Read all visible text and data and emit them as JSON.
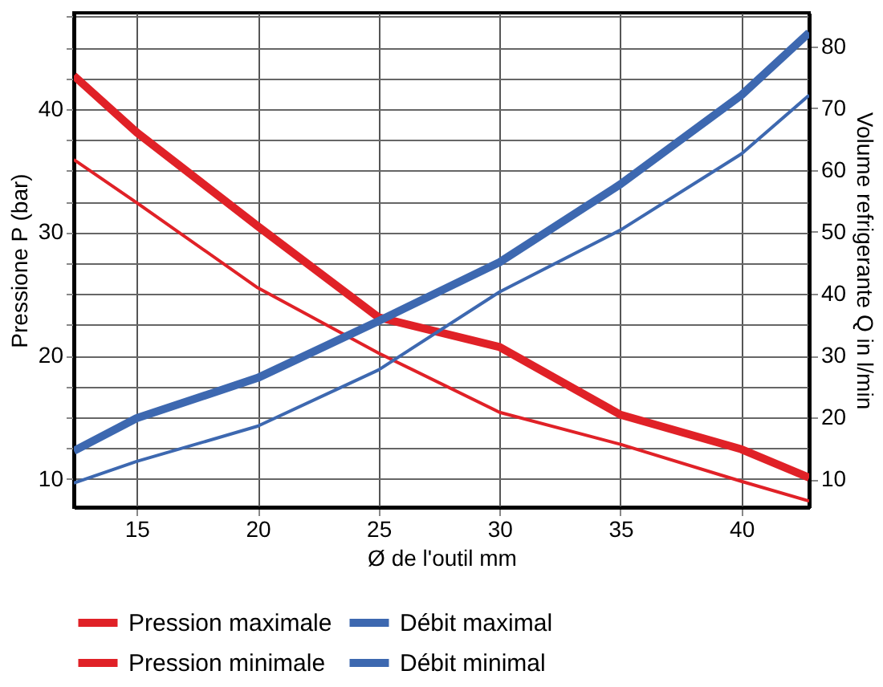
{
  "chart_data": {
    "type": "line",
    "xlabel": "Ø de l'outil mm",
    "ylabel": "Pressione P (bar)",
    "y2label": "Volume refrigerante Q in l/min",
    "xlim": [
      12.4,
      42.8
    ],
    "xticks": [
      15,
      20,
      25,
      30,
      35,
      40
    ],
    "ylim": [
      7.7,
      47.8
    ],
    "yticks": [
      10,
      {
        "value": 12.5,
        "label": null
      },
      {
        "value": 15,
        "label": null
      },
      {
        "value": 17.5,
        "label": null
      },
      20,
      {
        "value": 22.5,
        "label": null
      },
      {
        "value": 25,
        "label": null
      },
      {
        "value": 27.5,
        "label": null
      },
      30,
      {
        "value": 32.5,
        "label": null
      },
      {
        "value": 35,
        "label": null
      },
      {
        "value": 37.5,
        "label": null
      },
      40,
      {
        "value": 42.5,
        "label": null
      },
      {
        "value": 45,
        "label": null
      },
      {
        "value": 47.5,
        "label": null
      }
    ],
    "y2lim": [
      5.5,
      85.4
    ],
    "y2ticks": [
      10,
      20,
      30,
      40,
      50,
      60,
      70,
      80
    ],
    "grid": true,
    "legend": "bottom",
    "line_style": "solid",
    "marker": "none",
    "x": [
      12.4,
      15,
      20,
      25,
      30,
      35,
      40,
      42.8
    ],
    "series": [
      {
        "name": "Pression maximale",
        "color": "#e02127",
        "values": [
          42.7,
          38.1,
          30.5,
          23.1,
          20.7,
          15.2,
          12.4,
          10.1
        ]
      },
      {
        "name": "Pression minimale",
        "color": "#e02127",
        "values": [
          35.9,
          32.4,
          25.5,
          20.2,
          15.4,
          12.8,
          9.8,
          8.2
        ]
      },
      {
        "name": "Débit maximal",
        "color": "#3d68b0",
        "axis": "y2",
        "values": [
          14.6,
          19.9,
          26.4,
          35.6,
          45.1,
          57.7,
          72.1,
          82.2
        ]
      },
      {
        "name": "Débit minimal",
        "color": "#3d68b0",
        "axis": "y2",
        "values": [
          9.4,
          12.9,
          18.6,
          27.7,
          40.3,
          50.3,
          62.6,
          72.1
        ]
      }
    ]
  }
}
